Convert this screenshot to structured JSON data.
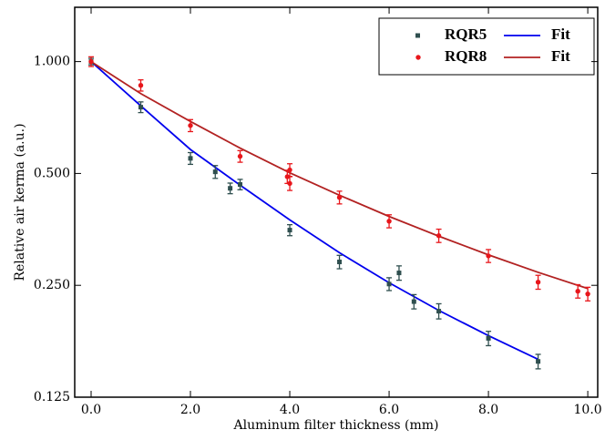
{
  "chart_data": {
    "type": "scatter",
    "xlabel": "Aluminum filter thickness (mm)",
    "ylabel": "Relative air kerma (a.u.)",
    "xlim": [
      -0.33,
      10.2
    ],
    "ylim": [
      0.125,
      1.4
    ],
    "yscale": "log",
    "legend": "upper right",
    "xticks": [
      {
        "value": 0,
        "label": "0.0"
      },
      {
        "value": 2,
        "label": "2.0"
      },
      {
        "value": 4,
        "label": "4.0"
      },
      {
        "value": 6,
        "label": "6.0"
      },
      {
        "value": 8,
        "label": "8.0"
      },
      {
        "value": 10,
        "label": "10.0"
      }
    ],
    "yticks": [
      {
        "value": 0.125,
        "label": "0.125"
      },
      {
        "value": 0.25,
        "label": "0.250"
      },
      {
        "value": 0.5,
        "label": "0.500"
      },
      {
        "value": 1,
        "label": "1.000"
      }
    ],
    "series": [
      {
        "name": "RQR5",
        "kind": "points",
        "marker": "square",
        "color": "#2f4f4f",
        "x": [
          0,
          1,
          2,
          2.5,
          2.8,
          3,
          4,
          5,
          6,
          6.2,
          6.5,
          7,
          8,
          9
        ],
        "values": [
          1.0,
          0.754,
          0.549,
          0.505,
          0.456,
          0.467,
          0.352,
          0.289,
          0.252,
          0.27,
          0.226,
          0.213,
          0.18,
          0.156
        ],
        "errors": [
          0.02,
          0.025,
          0.02,
          0.02,
          0.015,
          0.015,
          0.012,
          0.012,
          0.01,
          0.012,
          0.01,
          0.01,
          0.008,
          0.007
        ]
      },
      {
        "name": "Fit",
        "kind": "line",
        "color": "#0000ee",
        "x": [
          0,
          1,
          2,
          3,
          4,
          5,
          6,
          7,
          8,
          9
        ],
        "values": [
          1.0,
          0.76,
          0.58,
          0.465,
          0.375,
          0.306,
          0.254,
          0.214,
          0.183,
          0.158
        ]
      },
      {
        "name": "RQR8",
        "kind": "points",
        "marker": "circle",
        "color": "#e8161b",
        "x": [
          0,
          1,
          2,
          3,
          3.95,
          4,
          4,
          5,
          6,
          7,
          8,
          9,
          9.8,
          10
        ],
        "values": [
          1.0,
          0.863,
          0.673,
          0.556,
          0.49,
          0.47,
          0.511,
          0.431,
          0.372,
          0.34,
          0.3,
          0.255,
          0.241,
          0.237
        ],
        "errors": [
          0.03,
          0.03,
          0.025,
          0.02,
          0.02,
          0.02,
          0.02,
          0.017,
          0.015,
          0.014,
          0.012,
          0.011,
          0.01,
          0.01
        ]
      },
      {
        "name": "Fit",
        "kind": "line",
        "color": "#b22222",
        "x": [
          0,
          1,
          2,
          3,
          4,
          5,
          6,
          7,
          8,
          9,
          10
        ],
        "values": [
          1.0,
          0.82,
          0.69,
          0.585,
          0.502,
          0.437,
          0.383,
          0.339,
          0.302,
          0.271,
          0.245
        ]
      }
    ]
  }
}
